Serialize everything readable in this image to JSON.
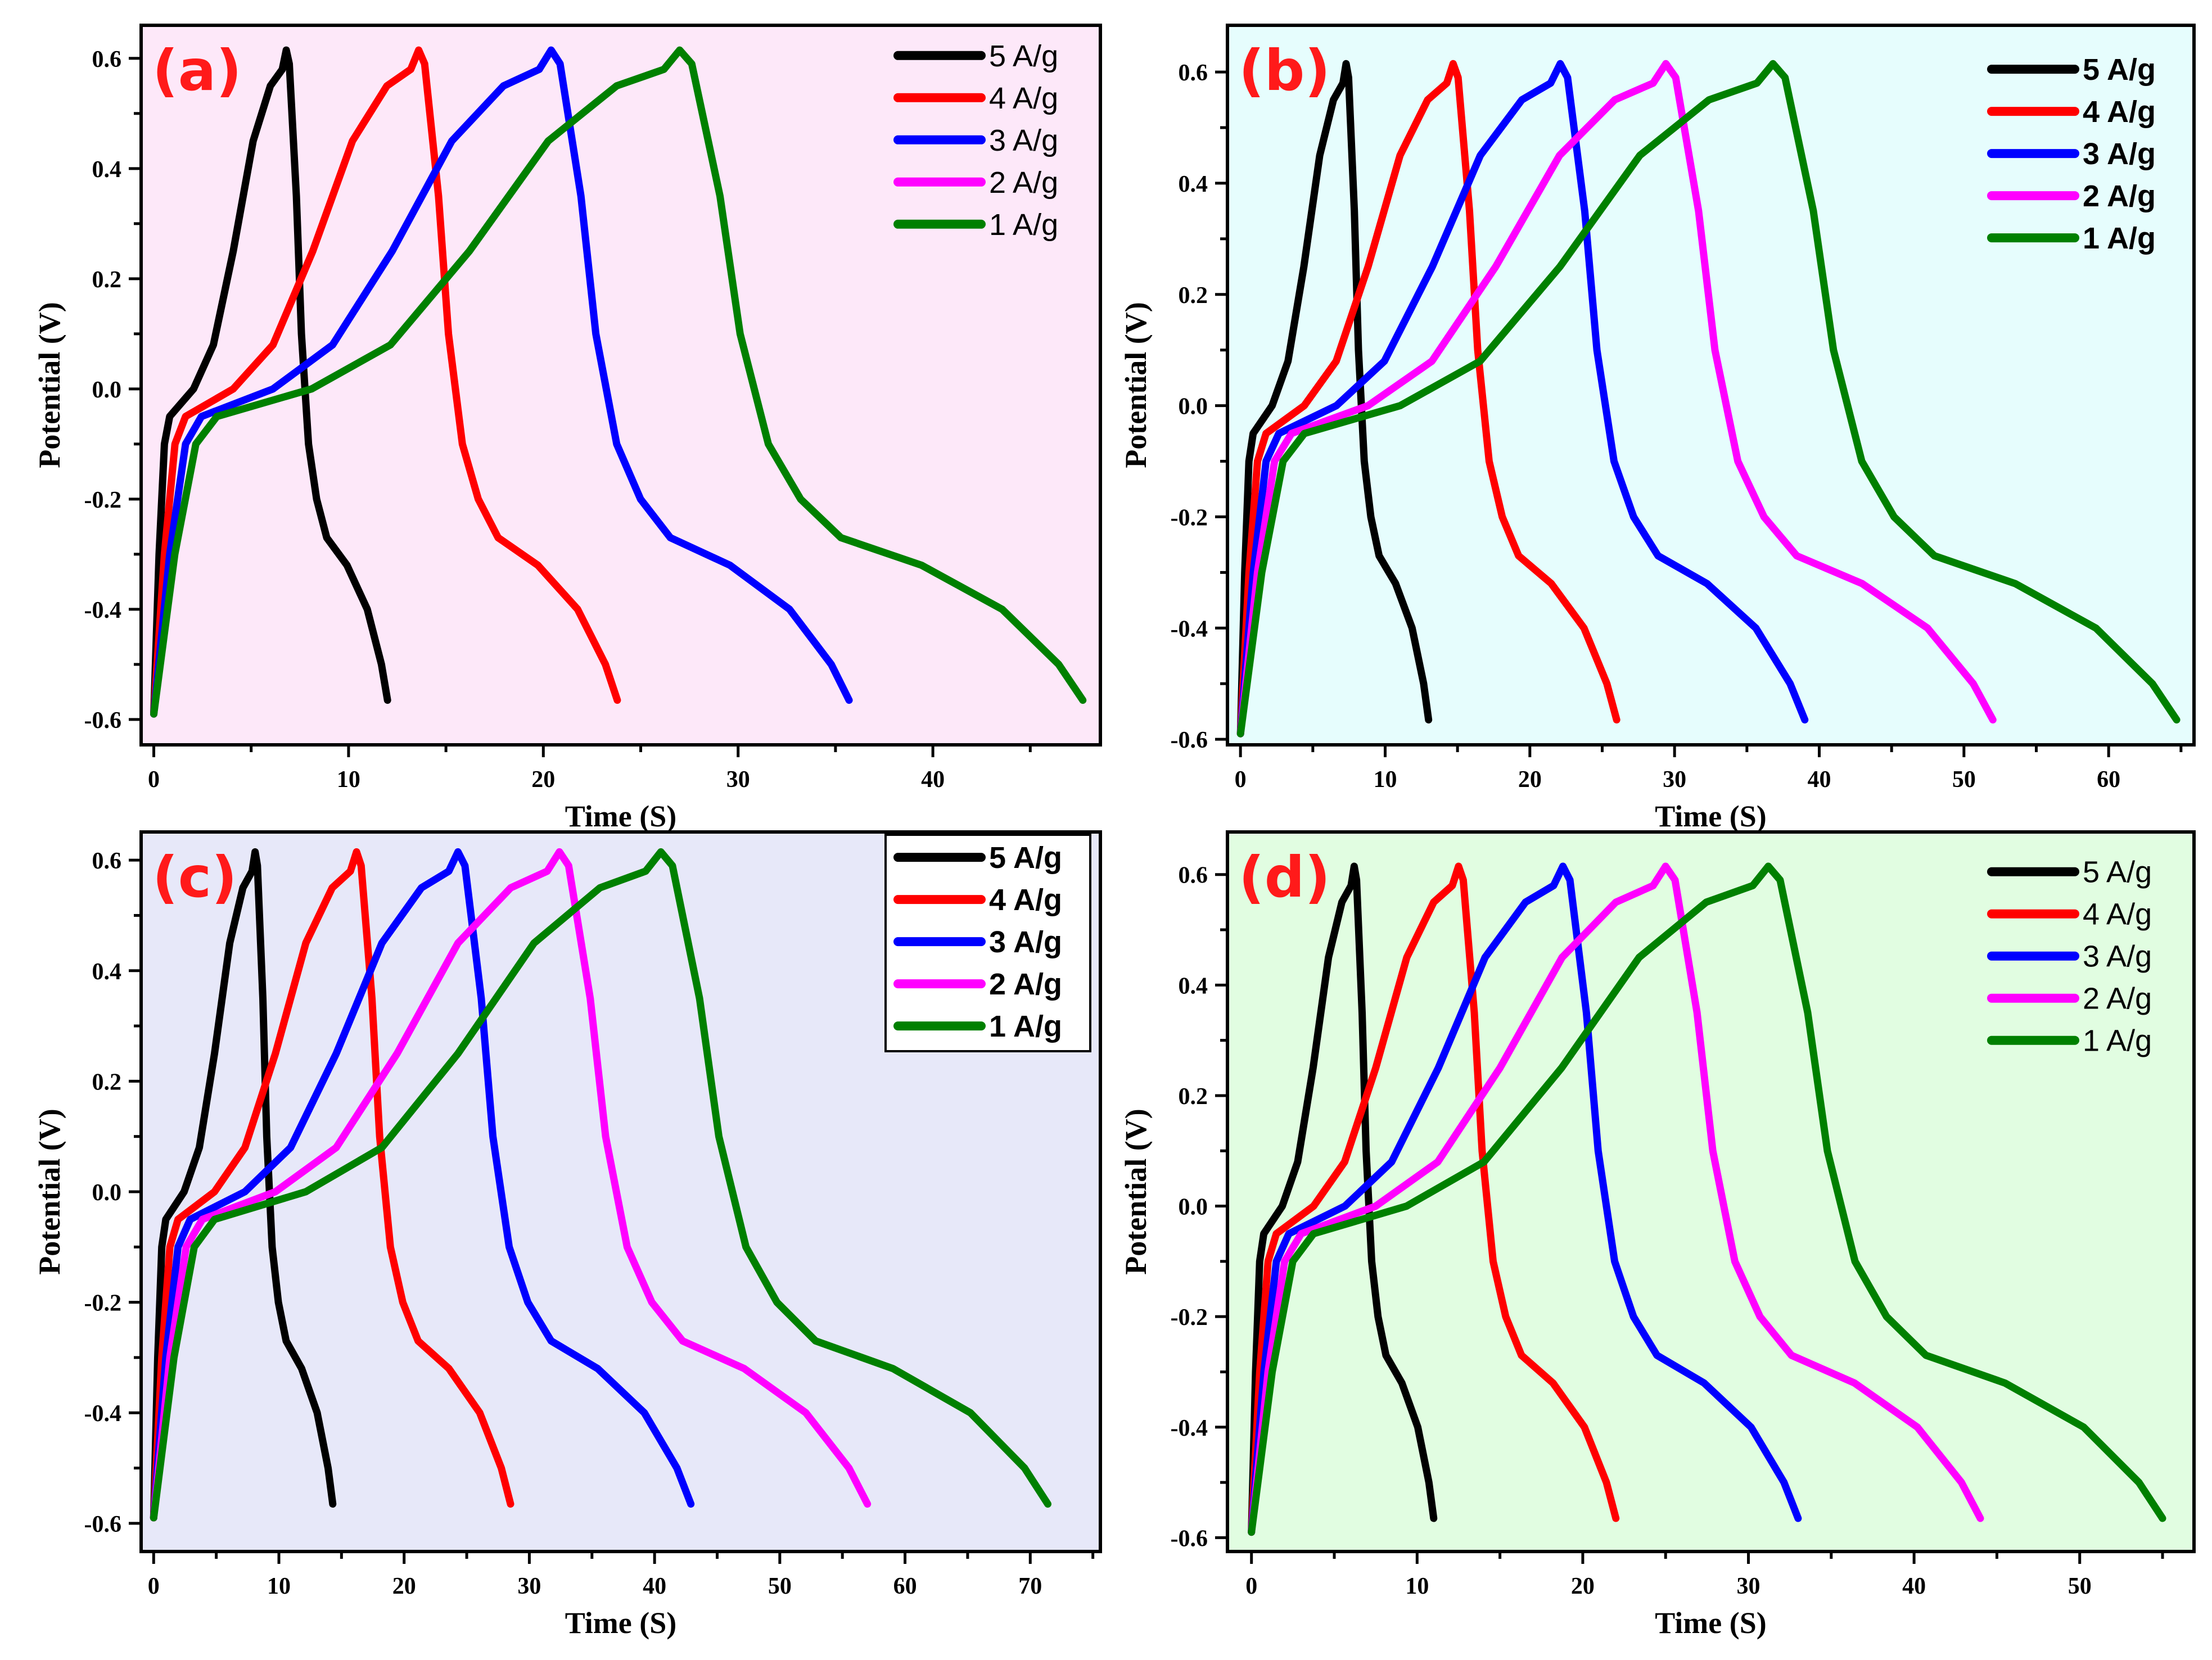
{
  "chart_data": [
    {
      "type": "line",
      "panel_label": "(a)",
      "background": "#fde8f9",
      "xlabel": "Time (S)",
      "ylabel": "Potential (V)",
      "xlim": [
        -0.65,
        48.6
      ],
      "ylim": [
        -0.646,
        0.66
      ],
      "xticks": [
        0,
        10,
        20,
        30,
        40
      ],
      "yticks": [
        -0.6,
        -0.4,
        -0.2,
        0.0,
        0.2,
        0.4,
        0.6
      ],
      "xtick_labels": [
        "0",
        "10",
        "20",
        "30",
        "40"
      ],
      "ytick_labels": [
        "-0.6",
        "-0.4",
        "-0.2",
        "0.0",
        "0.2",
        "0.4",
        "0.6"
      ],
      "legend": {
        "placement": "top-right",
        "bold": false,
        "boxed": false
      },
      "series": [
        {
          "name": "5 A/g",
          "color": "#000000",
          "peak_time": 6.8,
          "end_time": 12.0
        },
        {
          "name": "4 A/g",
          "color": "#ff0000",
          "peak_time": 13.6,
          "end_time": 23.8
        },
        {
          "name": "3 A/g",
          "color": "#0000ff",
          "peak_time": 20.4,
          "end_time": 35.7
        },
        {
          "name": "2 A/g",
          "color": "#ff00ff",
          "peak_time": null,
          "end_time": null
        },
        {
          "name": "1 A/g",
          "color": "#008000",
          "peak_time": 27.0,
          "end_time": 47.7
        }
      ]
    },
    {
      "type": "line",
      "panel_label": "(b)",
      "background": "#e6fdfd",
      "xlabel": "Time (S)",
      "ylabel": "Potential (V)",
      "xlim": [
        -0.9,
        65.9
      ],
      "ylim": [
        -0.61,
        0.684
      ],
      "xticks": [
        0,
        10,
        20,
        30,
        40,
        50,
        60
      ],
      "yticks": [
        -0.6,
        -0.4,
        -0.2,
        0.0,
        0.2,
        0.4,
        0.6
      ],
      "xtick_labels": [
        "0",
        "10",
        "20",
        "30",
        "40",
        "50",
        "60"
      ],
      "ytick_labels": [
        "-0.6",
        "-0.4",
        "-0.2",
        "0.0",
        "0.2",
        "0.4",
        "0.6"
      ],
      "legend": {
        "placement": "top-right",
        "bold": true,
        "boxed": false
      },
      "series": [
        {
          "name": "5 A/g",
          "color": "#000000",
          "peak_time": 7.3,
          "end_time": 13.0
        },
        {
          "name": "4 A/g",
          "color": "#ff0000",
          "peak_time": 14.7,
          "end_time": 26.0
        },
        {
          "name": "3 A/g",
          "color": "#0000ff",
          "peak_time": 22.1,
          "end_time": 39.0
        },
        {
          "name": "2 A/g",
          "color": "#ff00ff",
          "peak_time": 29.4,
          "end_time": 52.0
        },
        {
          "name": "1 A/g",
          "color": "#008000",
          "peak_time": 36.8,
          "end_time": 64.7
        }
      ]
    },
    {
      "type": "line",
      "panel_label": "(c)",
      "background": "#e7e8f9",
      "xlabel": "Time (S)",
      "ylabel": "Potential (V)",
      "xlim": [
        -1.0,
        75.6
      ],
      "ylim": [
        -0.651,
        0.651
      ],
      "xticks": [
        0,
        10,
        20,
        30,
        40,
        50,
        60,
        70
      ],
      "yticks": [
        -0.6,
        -0.4,
        -0.2,
        0.0,
        0.2,
        0.4,
        0.6
      ],
      "xtick_labels": [
        "0",
        "10",
        "20",
        "30",
        "40",
        "50",
        "60",
        "70"
      ],
      "ytick_labels": [
        "-0.6",
        "-0.4",
        "-0.2",
        "0.0",
        "0.2",
        "0.4",
        "0.6"
      ],
      "legend": {
        "placement": "top-right",
        "bold": true,
        "boxed": true
      },
      "series": [
        {
          "name": "5 A/g",
          "color": "#000000",
          "peak_time": 8.1,
          "end_time": 14.3
        },
        {
          "name": "4 A/g",
          "color": "#ff0000",
          "peak_time": 16.2,
          "end_time": 28.5
        },
        {
          "name": "3 A/g",
          "color": "#0000ff",
          "peak_time": 24.3,
          "end_time": 42.9
        },
        {
          "name": "2 A/g",
          "color": "#ff00ff",
          "peak_time": 32.4,
          "end_time": 57.0
        },
        {
          "name": "1 A/g",
          "color": "#008000",
          "peak_time": 40.5,
          "end_time": 71.4
        }
      ]
    },
    {
      "type": "line",
      "panel_label": "(d)",
      "background": "#e1fde1",
      "xlabel": "Time (S)",
      "ylabel": "Potential (V)",
      "xlim": [
        -1.45,
        56.9
      ],
      "ylim": [
        -0.625,
        0.677
      ],
      "xticks": [
        0,
        10,
        20,
        30,
        40,
        50
      ],
      "yticks": [
        -0.6,
        -0.4,
        -0.2,
        0.0,
        0.2,
        0.4,
        0.6
      ],
      "xtick_labels": [
        "0",
        "10",
        "20",
        "30",
        "40",
        "50"
      ],
      "ytick_labels": [
        "-0.6",
        "-0.4",
        "-0.2",
        "0.0",
        "0.2",
        "0.4",
        "0.6"
      ],
      "legend": {
        "placement": "top-right",
        "bold": false,
        "boxed": false
      },
      "series": [
        {
          "name": "5 A/g",
          "color": "#000000",
          "peak_time": 6.2,
          "end_time": 11.0
        },
        {
          "name": "4 A/g",
          "color": "#ff0000",
          "peak_time": 12.5,
          "end_time": 22.0
        },
        {
          "name": "3 A/g",
          "color": "#0000ff",
          "peak_time": 18.8,
          "end_time": 33.0
        },
        {
          "name": "2 A/g",
          "color": "#ff00ff",
          "peak_time": 25.0,
          "end_time": 44.0
        },
        {
          "name": "1 A/g",
          "color": "#008000",
          "peak_time": 31.2,
          "end_time": 55.0
        }
      ]
    }
  ],
  "curve_profile": {
    "charge": [
      [
        0,
        -0.59
      ],
      [
        0.04,
        -0.3
      ],
      [
        0.08,
        -0.1
      ],
      [
        0.12,
        -0.05
      ],
      [
        0.3,
        0.0
      ],
      [
        0.45,
        0.08
      ],
      [
        0.6,
        0.25
      ],
      [
        0.75,
        0.45
      ],
      [
        0.88,
        0.55
      ],
      [
        0.97,
        0.58
      ],
      [
        1.0,
        0.615
      ]
    ],
    "discharge": [
      [
        0.03,
        0.59
      ],
      [
        0.1,
        0.35
      ],
      [
        0.15,
        0.1
      ],
      [
        0.22,
        -0.1
      ],
      [
        0.3,
        -0.2
      ],
      [
        0.4,
        -0.27
      ],
      [
        0.6,
        -0.32
      ],
      [
        0.8,
        -0.4
      ],
      [
        0.94,
        -0.5
      ],
      [
        1.0,
        -0.565
      ]
    ]
  }
}
